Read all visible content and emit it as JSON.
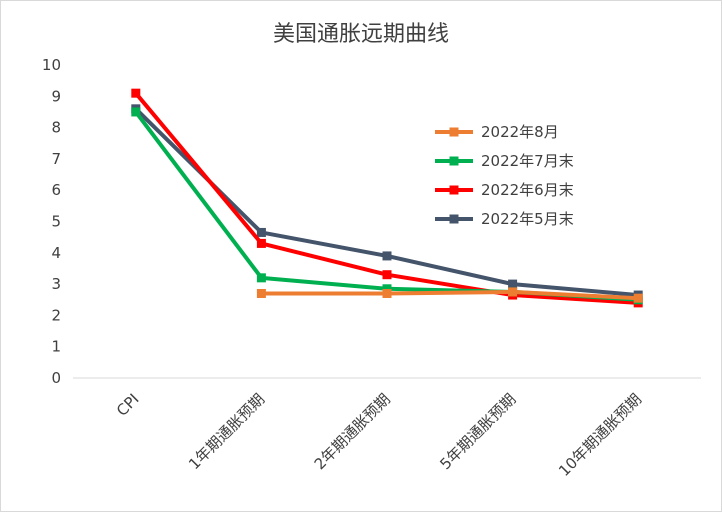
{
  "chart_data": {
    "type": "line",
    "title": "美国通胀远期曲线",
    "categories": [
      "CPI",
      "1年期通胀预期",
      "2年期通胀预期",
      "5年期通胀预期",
      "10年期通胀预期"
    ],
    "ylim": [
      0,
      10
    ],
    "yticks": [
      0,
      1,
      2,
      3,
      4,
      5,
      6,
      7,
      8,
      9,
      10
    ],
    "grid": false,
    "legend_position": "top-right",
    "series": [
      {
        "name": "2022年8月",
        "color": "#ED7D31",
        "values": [
          null,
          2.7,
          2.7,
          2.75,
          2.55
        ]
      },
      {
        "name": "2022年7月末",
        "color": "#00B050",
        "values": [
          8.5,
          3.2,
          2.85,
          2.75,
          2.5
        ]
      },
      {
        "name": "2022年6月末",
        "color": "#FF0000",
        "values": [
          9.1,
          4.3,
          3.3,
          2.65,
          2.4
        ]
      },
      {
        "name": "2022年5月末",
        "color": "#44546A",
        "values": [
          8.6,
          4.65,
          3.9,
          3.0,
          2.65
        ]
      }
    ]
  }
}
